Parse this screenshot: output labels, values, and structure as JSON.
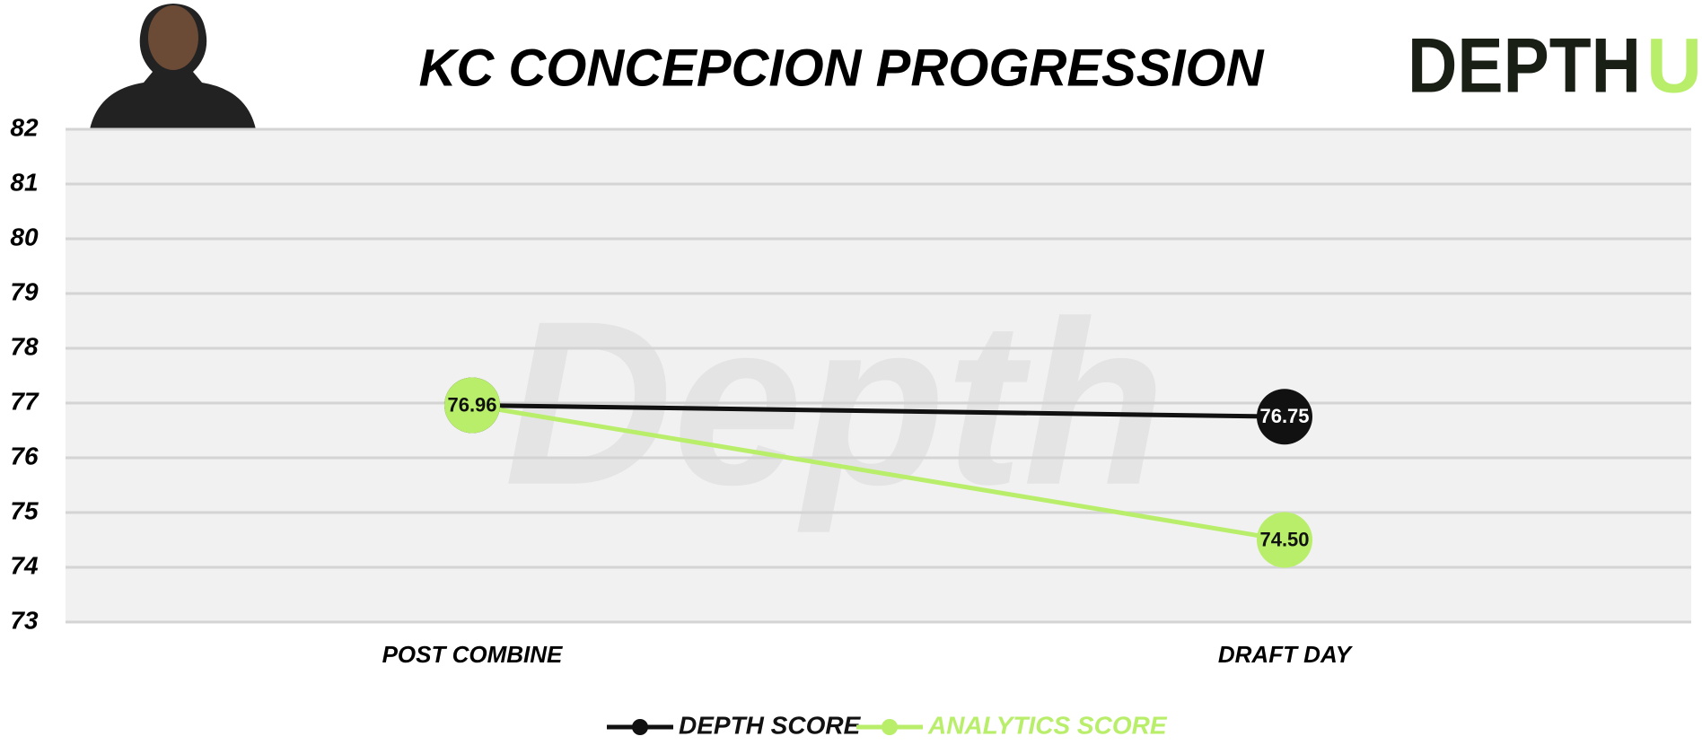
{
  "chart_data": {
    "type": "line",
    "title": "KC CONCEPCION PROGRESSION",
    "logo": {
      "text": "DEPTH",
      "accent": "U"
    },
    "watermark": "Depth",
    "categories": [
      "POST COMBINE",
      "DRAFT DAY"
    ],
    "series": [
      {
        "name": "DEPTH SCORE",
        "color": "#111111",
        "values": [
          76.96,
          76.75
        ],
        "value_labels": [
          "76.96",
          "76.75"
        ]
      },
      {
        "name": "ANALYTICS SCORE",
        "color": "#b8ee6a",
        "values": [
          76.96,
          74.5
        ],
        "value_labels": [
          "76.96",
          "74.50"
        ]
      }
    ],
    "ylim": [
      73,
      82
    ],
    "yticks": [
      73,
      74,
      75,
      76,
      77,
      78,
      79,
      80,
      81,
      82
    ],
    "grid": true
  }
}
